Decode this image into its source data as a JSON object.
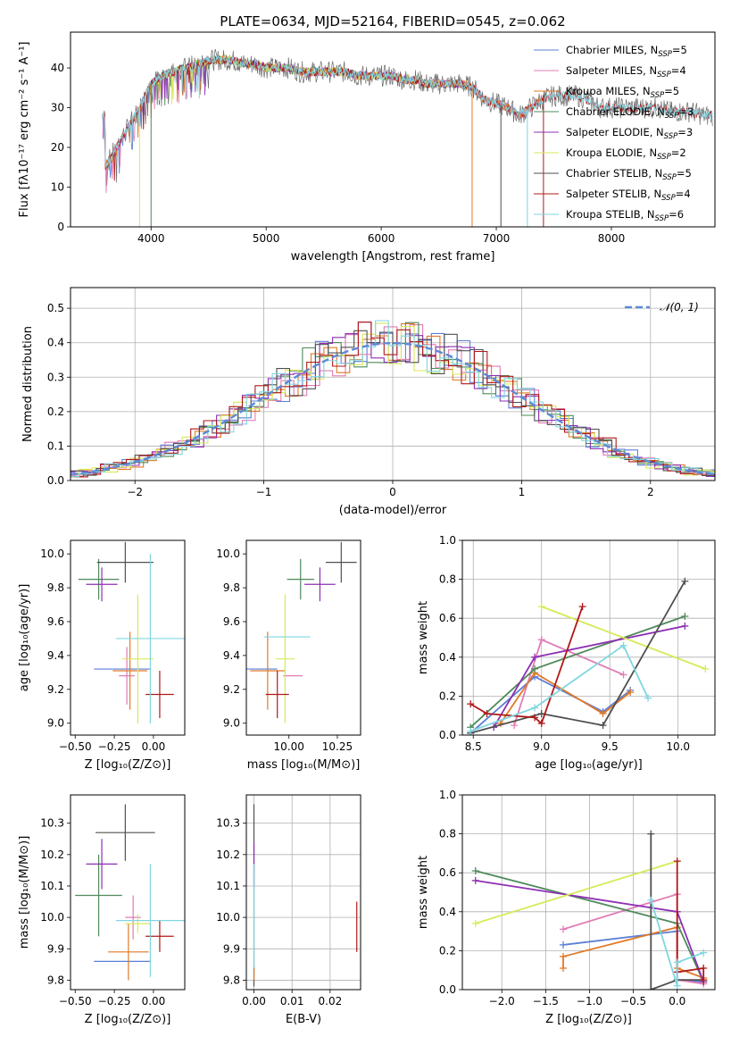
{
  "figure_title": "PLATE=0634, MJD=52164, FIBERID=0545, z=0.062",
  "colors": {
    "Chabrier MILES": "#5b7fd6",
    "Salpeter MILES": "#e07cb5",
    "Kroupa MILES": "#e07a28",
    "Chabrier ELODIE": "#4f8a5b",
    "Salpeter ELODIE": "#8e2fb3",
    "Kroupa ELODIE": "#d7ea5a",
    "Chabrier STELIB": "#505050",
    "Salpeter STELIB": "#b01818",
    "Kroupa STELIB": "#7fd6e0"
  },
  "chart_data": [
    {
      "id": "spectrum",
      "type": "line",
      "xlabel": "wavelength [Angstrom, rest frame]",
      "ylabel": "Flux [fλ10⁻¹⁷ erg cm⁻² s⁻¹ A⁻¹]",
      "xlim": [
        3300,
        8900
      ],
      "ylim": [
        0,
        49
      ],
      "xticks": [
        4000,
        5000,
        6000,
        7000,
        8000
      ],
      "yticks": [
        0,
        10,
        20,
        30,
        40
      ],
      "legend": [
        {
          "name": "Chabrier MILES",
          "n": "5"
        },
        {
          "name": "Salpeter MILES",
          "n": "4"
        },
        {
          "name": "Kroupa MILES",
          "n": "5"
        },
        {
          "name": "Chabrier ELODIE",
          "n": "3"
        },
        {
          "name": "Salpeter ELODIE",
          "n": "3"
        },
        {
          "name": "Kroupa ELODIE",
          "n": "2"
        },
        {
          "name": "Chabrier STELIB",
          "n": "5"
        },
        {
          "name": "Salpeter STELIB",
          "n": "4"
        },
        {
          "name": "Kroupa STELIB",
          "n": "6"
        }
      ],
      "legend_placement": "upper right",
      "series_x": [
        3600,
        3700,
        3800,
        3900,
        4000,
        4100,
        4200,
        4300,
        4400,
        4500,
        4600,
        4700,
        4800,
        4900,
        5000,
        5100,
        5200,
        5300,
        5400,
        5500,
        5600,
        5700,
        5800,
        5900,
        6000,
        6100,
        6200,
        6300,
        6400,
        6500,
        6600,
        6700,
        6800,
        6900,
        7000,
        7100,
        7200,
        7300,
        7400,
        7500,
        7600,
        7700,
        7800,
        7900,
        8000,
        8100,
        8200,
        8300,
        8400,
        8500,
        8600,
        8700,
        8800
      ],
      "series_y": [
        15,
        20,
        25,
        30,
        36,
        38,
        39,
        40,
        41,
        42,
        42,
        42,
        41,
        41,
        40,
        40,
        40,
        39,
        39,
        39,
        39,
        39,
        38,
        38,
        38,
        38,
        37,
        37,
        36,
        36,
        36,
        36,
        35,
        32,
        31,
        30,
        28,
        30,
        32,
        33,
        33,
        33,
        32,
        30,
        30,
        30,
        30,
        30,
        30,
        29,
        29,
        29,
        28
      ]
    },
    {
      "id": "residuals",
      "type": "bar",
      "xlabel": "(data-model)/error",
      "ylabel": "Normed distribution",
      "xlim": [
        -2.5,
        2.5
      ],
      "ylim": [
        0,
        0.56
      ],
      "xticks": [
        -2,
        -1,
        0,
        1,
        2
      ],
      "yticks": [
        0.0,
        0.1,
        0.2,
        0.3,
        0.4,
        0.5
      ],
      "grid": true,
      "gaussian_label": "𝒩(0, 1)",
      "legend_placement": "upper right"
    },
    {
      "id": "age_vs_Z",
      "type": "scatter",
      "xlabel": "Z [log₁₀(Z/Z⊙)]",
      "ylabel": "age  [log₁₀(age/yr)]",
      "xlim": [
        -0.53,
        0.2
      ],
      "ylim": [
        8.93,
        10.08
      ],
      "xticks": [
        -0.5,
        -0.25,
        0.0
      ],
      "yticks": [
        9.0,
        9.2,
        9.4,
        9.6,
        9.8,
        10.0
      ],
      "points": [
        {
          "s": "Chabrier MILES",
          "x": -0.2,
          "xe": 0.18,
          "y": 9.32,
          "ye": 0.0
        },
        {
          "s": "Salpeter MILES",
          "x": -0.17,
          "xe": 0.05,
          "y": 9.28,
          "ye": 0.17
        },
        {
          "s": "Kroupa MILES",
          "x": -0.15,
          "xe": 0.11,
          "y": 9.31,
          "ye": 0.23
        },
        {
          "s": "Chabrier ELODIE",
          "x": -0.35,
          "xe": 0.13,
          "y": 9.85,
          "ye": 0.12
        },
        {
          "s": "Salpeter ELODIE",
          "x": -0.33,
          "xe": 0.1,
          "y": 9.82,
          "ye": 0.1
        },
        {
          "s": "Kroupa ELODIE",
          "x": -0.1,
          "xe": 0.1,
          "y": 9.38,
          "ye": 0.38
        },
        {
          "s": "Chabrier STELIB",
          "x": -0.18,
          "xe": 0.18,
          "y": 9.95,
          "ye": 0.12
        },
        {
          "s": "Salpeter STELIB",
          "x": 0.04,
          "xe": 0.09,
          "y": 9.17,
          "ye": 0.14
        },
        {
          "s": "Kroupa STELIB",
          "x": -0.02,
          "xe": 0.22,
          "y": 9.5,
          "ye": 0.5
        }
      ]
    },
    {
      "id": "age_vs_mass",
      "type": "scatter",
      "xlabel": "mass [log₁₀(M/M⊙)]",
      "ylabel": "",
      "xlim": [
        9.78,
        10.37
      ],
      "ylim": [
        8.93,
        10.08
      ],
      "xticks": [
        10.0,
        10.25
      ],
      "yticks": [
        9.0,
        9.2,
        9.4,
        9.6,
        9.8,
        10.0
      ],
      "points": [
        {
          "s": "Chabrier MILES",
          "x": 9.86,
          "xe": 0.08,
          "y": 9.32,
          "ye": 0.0
        },
        {
          "s": "Salpeter MILES",
          "x": 10.02,
          "xe": 0.05,
          "y": 9.28,
          "ye": 0.0
        },
        {
          "s": "Kroupa MILES",
          "x": 9.89,
          "xe": 0.09,
          "y": 9.31,
          "ye": 0.23
        },
        {
          "s": "Chabrier ELODIE",
          "x": 10.06,
          "xe": 0.07,
          "y": 9.85,
          "ye": 0.12
        },
        {
          "s": "Salpeter ELODIE",
          "x": 10.16,
          "xe": 0.08,
          "y": 9.82,
          "ye": 0.1
        },
        {
          "s": "Kroupa ELODIE",
          "x": 9.98,
          "xe": 0.05,
          "y": 9.38,
          "ye": 0.38
        },
        {
          "s": "Chabrier STELIB",
          "x": 10.27,
          "xe": 0.08,
          "y": 9.95,
          "ye": 0.12
        },
        {
          "s": "Salpeter STELIB",
          "x": 9.94,
          "xe": 0.06,
          "y": 9.17,
          "ye": 0.14
        },
        {
          "s": "Kroupa STELIB",
          "x": 9.99,
          "xe": 0.12,
          "y": 9.51,
          "ye": 0.0
        }
      ]
    },
    {
      "id": "weight_vs_age",
      "type": "line",
      "xlabel": "age  [log₁₀(age/yr)]",
      "ylabel": "mass weight",
      "xlim": [
        8.42,
        10.27
      ],
      "ylim": [
        0,
        1
      ],
      "xticks": [
        8.5,
        9.0,
        9.5,
        10.0
      ],
      "yticks": [
        0.0,
        0.2,
        0.4,
        0.6,
        0.8,
        1.0
      ],
      "grid": true,
      "series": [
        {
          "s": "Chabrier MILES",
          "x": [
            8.48,
            8.95,
            9.45,
            9.65
          ],
          "y": [
            0.01,
            0.3,
            0.12,
            0.23
          ]
        },
        {
          "s": "Salpeter MILES",
          "x": [
            8.8,
            9.0,
            9.6
          ],
          "y": [
            0.05,
            0.49,
            0.31
          ]
        },
        {
          "s": "Kroupa MILES",
          "x": [
            8.7,
            8.95,
            9.45,
            9.65
          ],
          "y": [
            0.06,
            0.32,
            0.11,
            0.22
          ]
        },
        {
          "s": "Chabrier ELODIE",
          "x": [
            8.48,
            8.95,
            10.05
          ],
          "y": [
            0.04,
            0.34,
            0.61
          ]
        },
        {
          "s": "Salpeter ELODIE",
          "x": [
            8.65,
            8.95,
            10.05
          ],
          "y": [
            0.04,
            0.4,
            0.56
          ]
        },
        {
          "s": "Kroupa ELODIE",
          "x": [
            9.0,
            10.2
          ],
          "y": [
            0.66,
            0.34
          ]
        },
        {
          "s": "Chabrier STELIB",
          "x": [
            8.48,
            9.0,
            9.45,
            10.05
          ],
          "y": [
            0.01,
            0.11,
            0.05,
            0.79
          ]
        },
        {
          "s": "Salpeter STELIB",
          "x": [
            8.48,
            8.6,
            8.95,
            9.0,
            9.3
          ],
          "y": [
            0.16,
            0.11,
            0.09,
            0.06,
            0.66
          ]
        },
        {
          "s": "Kroupa STELIB",
          "x": [
            8.48,
            8.95,
            9.6,
            9.78
          ],
          "y": [
            0.02,
            0.14,
            0.46,
            0.19
          ]
        }
      ]
    },
    {
      "id": "mass_vs_Z",
      "type": "scatter",
      "xlabel": "Z [log₁₀(Z/Z⊙)]",
      "ylabel": "mass [log₁₀(M/M⊙)]",
      "xlim": [
        -0.53,
        0.2
      ],
      "ylim": [
        9.77,
        10.39
      ],
      "xticks": [
        -0.5,
        -0.25,
        0.0
      ],
      "yticks": [
        9.8,
        9.9,
        10.0,
        10.1,
        10.2,
        10.3
      ],
      "points": [
        {
          "s": "Chabrier MILES",
          "x": -0.2,
          "xe": 0.18,
          "y": 9.86,
          "ye": 0.0
        },
        {
          "s": "Salpeter MILES",
          "x": -0.13,
          "xe": 0.05,
          "y": 10.0,
          "ye": 0.07
        },
        {
          "s": "Kroupa MILES",
          "x": -0.16,
          "xe": 0.13,
          "y": 9.89,
          "ye": 0.09
        },
        {
          "s": "Chabrier ELODIE",
          "x": -0.35,
          "xe": 0.15,
          "y": 10.07,
          "ye": 0.13
        },
        {
          "s": "Salpeter ELODIE",
          "x": -0.33,
          "xe": 0.1,
          "y": 10.17,
          "ye": 0.08
        },
        {
          "s": "Kroupa ELODIE",
          "x": -0.1,
          "xe": 0.08,
          "y": 9.98,
          "ye": 0.03
        },
        {
          "s": "Chabrier STELIB",
          "x": -0.18,
          "xe": 0.19,
          "y": 10.27,
          "ye": 0.09
        },
        {
          "s": "Salpeter STELIB",
          "x": 0.04,
          "xe": 0.09,
          "y": 9.94,
          "ye": 0.05
        },
        {
          "s": "Kroupa STELIB",
          "x": -0.02,
          "xe": 0.22,
          "y": 9.99,
          "ye": 0.18
        }
      ]
    },
    {
      "id": "mass_vs_ebv",
      "type": "scatter",
      "xlabel": "E(B-V)",
      "ylabel": "",
      "xlim": [
        -0.002,
        0.028
      ],
      "ylim": [
        9.77,
        10.39
      ],
      "xticks": [
        0.0,
        0.01,
        0.02
      ],
      "yticks": [
        9.8,
        9.9,
        10.0,
        10.1,
        10.2,
        10.3
      ],
      "grid": true,
      "points": [
        {
          "s": "Chabrier STELIB",
          "x": 0.0,
          "xe": 0.0,
          "y": 10.07,
          "ye": 0.29
        },
        {
          "s": "Salpeter ELODIE",
          "x": 0.0,
          "xe": 0.0,
          "y": 10.17,
          "ye": 0.07
        },
        {
          "s": "Kroupa STELIB",
          "x": 0.0,
          "xe": 0.0,
          "y": 9.99,
          "ye": 0.18
        },
        {
          "s": "Kroupa MILES",
          "x": 0.0,
          "xe": 0.0,
          "y": 9.82,
          "ye": 0.02
        },
        {
          "s": "Salpeter STELIB",
          "x": 0.027,
          "xe": 0.0,
          "y": 9.97,
          "ye": 0.08
        }
      ]
    },
    {
      "id": "weight_vs_Z",
      "type": "line",
      "xlabel": "Z [log₁₀(Z/Z⊙)]",
      "ylabel": "mass weight",
      "xlim": [
        -2.45,
        0.43
      ],
      "ylim": [
        0,
        1
      ],
      "xticks": [
        -2.0,
        -1.5,
        -1.0,
        -0.5,
        0.0
      ],
      "yticks": [
        0.0,
        0.2,
        0.4,
        0.6,
        0.8,
        1.0
      ],
      "grid": true,
      "series": [
        {
          "s": "Chabrier MILES",
          "x": [
            -1.3,
            0.0,
            0.0,
            0.3
          ],
          "y": [
            0.23,
            0.3,
            0.05,
            0.04
          ]
        },
        {
          "s": "Salpeter MILES",
          "x": [
            -1.3,
            0.0,
            0.0,
            0.3
          ],
          "y": [
            0.31,
            0.49,
            0.05,
            0.03
          ]
        },
        {
          "s": "Kroupa MILES",
          "x": [
            -1.3,
            -1.3,
            0.0,
            0.0,
            0.3
          ],
          "y": [
            0.11,
            0.17,
            0.32,
            0.11,
            0.06
          ]
        },
        {
          "s": "Chabrier ELODIE",
          "x": [
            -2.3,
            0.0,
            0.3
          ],
          "y": [
            0.61,
            0.34,
            0.04
          ]
        },
        {
          "s": "Salpeter ELODIE",
          "x": [
            -2.3,
            0.0,
            0.3
          ],
          "y": [
            0.56,
            0.4,
            0.04
          ]
        },
        {
          "s": "Kroupa ELODIE",
          "x": [
            -2.3,
            0.0
          ],
          "y": [
            0.34,
            0.66
          ]
        },
        {
          "s": "Chabrier STELIB",
          "x": [
            -0.3,
            -0.3,
            0.0,
            0.3
          ],
          "y": [
            0.8,
            0.0,
            0.05,
            0.05
          ]
        },
        {
          "s": "Salpeter STELIB",
          "x": [
            0.0,
            0.0,
            0.3,
            0.3
          ],
          "y": [
            0.66,
            0.09,
            0.11,
            0.05
          ]
        },
        {
          "s": "Kroupa STELIB",
          "x": [
            -0.3,
            0.0,
            0.0,
            0.3
          ],
          "y": [
            0.46,
            0.02,
            0.14,
            0.19
          ]
        }
      ]
    }
  ]
}
